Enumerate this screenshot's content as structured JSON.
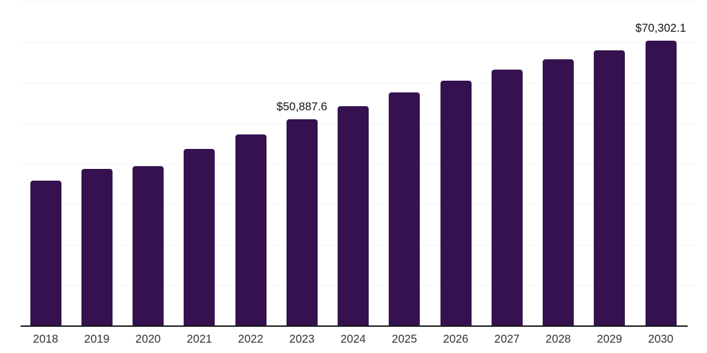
{
  "chart_data": {
    "type": "bar",
    "title": "",
    "xlabel": "",
    "ylabel": "",
    "categories": [
      "2018",
      "2019",
      "2020",
      "2021",
      "2022",
      "2023",
      "2024",
      "2025",
      "2026",
      "2027",
      "2028",
      "2029",
      "2030"
    ],
    "values": [
      35800,
      38700,
      39400,
      43600,
      47300,
      50887.6,
      54200,
      57600,
      60500,
      63200,
      65700,
      67900,
      70302.1
    ],
    "data_labels": {
      "2023": "$50,887.6",
      "2030": "$70,302.1"
    },
    "ylim": [
      0,
      80000
    ],
    "gridline_interval": 10000,
    "grid": "horizontal-only",
    "legend_position": "none",
    "y_axis_labels_visible": false,
    "colors": {
      "bar": "#35124F",
      "axis_line": "#1a1a1a",
      "gridline": "#f4f4f4",
      "tick_label": "#333333",
      "data_label": "#111111",
      "background": "#ffffff"
    }
  }
}
